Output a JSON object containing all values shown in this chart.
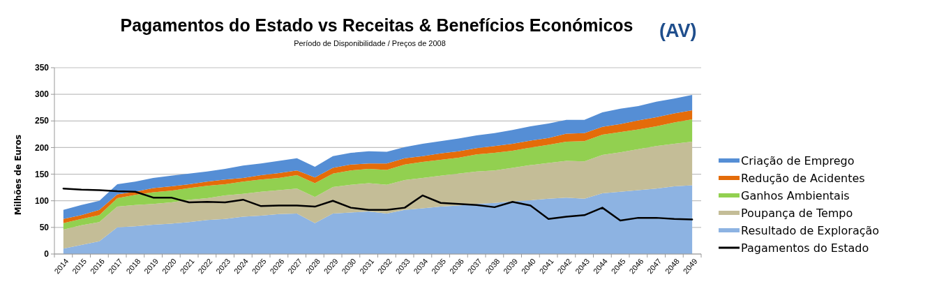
{
  "chart_data": {
    "type": "area",
    "stacked": true,
    "title": "Pagamentos do Estado vs Receitas & Benefícios Económicos",
    "subtitle": "Período de Disponibilidade  / Preços de 2008",
    "annotations": [
      "(AV)"
    ],
    "ylabel": "Milhões de Euros",
    "categories": [
      "2014",
      "2015",
      "2016",
      "2017",
      "2018",
      "2019",
      "2020",
      "2021",
      "2022",
      "2023",
      "2024",
      "2025",
      "2026",
      "2027",
      "2028",
      "2029",
      "2030",
      "2031",
      "2032",
      "2033",
      "2034",
      "2035",
      "2036",
      "2037",
      "2038",
      "2039",
      "2040",
      "2041",
      "2042",
      "2043",
      "2044",
      "2045",
      "2046",
      "2047",
      "2048",
      "2049"
    ],
    "ylim": [
      0,
      350
    ],
    "yticks": [
      0,
      50,
      100,
      150,
      200,
      250,
      300,
      350
    ],
    "grid": "y",
    "legend": "right",
    "series": [
      {
        "name": "Resultado de Exploração",
        "color": "#8db3e2",
        "values": [
          10,
          17,
          24,
          50,
          52,
          55,
          57,
          60,
          64,
          66,
          70,
          72,
          75,
          76,
          58,
          76,
          78,
          80,
          76,
          83,
          86,
          89,
          91,
          94,
          96,
          99,
          101,
          104,
          106,
          104,
          114,
          117,
          120,
          123,
          127,
          129
        ]
      },
      {
        "name": "Poupança de Tempo",
        "color": "#c4bd97",
        "values": [
          36,
          37,
          36,
          39,
          40,
          39,
          40,
          42,
          41,
          44,
          43,
          45,
          45,
          47,
          49,
          50,
          52,
          53,
          54,
          56,
          57,
          58,
          60,
          61,
          61,
          63,
          66,
          67,
          69,
          70,
          72,
          74,
          77,
          80,
          80,
          82
        ]
      },
      {
        "name": "Ganhos Ambientais",
        "color": "#92d050",
        "values": [
          12,
          12,
          13,
          16,
          19,
          22,
          22,
          22,
          23,
          21,
          23,
          23,
          23,
          25,
          26,
          25,
          27,
          27,
          28,
          29,
          30,
          30,
          30,
          32,
          33,
          32,
          33,
          34,
          36,
          38,
          38,
          38,
          37,
          37,
          40,
          42
        ]
      },
      {
        "name": "Redução de Acidentes",
        "color": "#e46c0a",
        "values": [
          8,
          7,
          10,
          7,
          6,
          8,
          8,
          7,
          8,
          9,
          7,
          8,
          9,
          9,
          11,
          11,
          11,
          10,
          12,
          12,
          11,
          12,
          12,
          12,
          13,
          13,
          13,
          13,
          15,
          15,
          15,
          15,
          17,
          17,
          17,
          17
        ]
      },
      {
        "name": "Criação de Emprego",
        "color": "#558ed5",
        "values": [
          17,
          19,
          17,
          19,
          19,
          19,
          20,
          20,
          19,
          20,
          23,
          22,
          23,
          23,
          20,
          22,
          22,
          23,
          22,
          21,
          23,
          23,
          24,
          24,
          24,
          26,
          27,
          27,
          26,
          25,
          27,
          29,
          27,
          29,
          28,
          29
        ]
      },
      {
        "name": "Pagamentos do Estado",
        "type": "line",
        "color": "#000000",
        "values": [
          123,
          121,
          120,
          118,
          117,
          106,
          106,
          97,
          98,
          97,
          102,
          90,
          91,
          91,
          89,
          100,
          87,
          83,
          83,
          87,
          110,
          96,
          94,
          92,
          88,
          98,
          91,
          66,
          70,
          73,
          87,
          63,
          68,
          68,
          66,
          65
        ]
      }
    ]
  }
}
